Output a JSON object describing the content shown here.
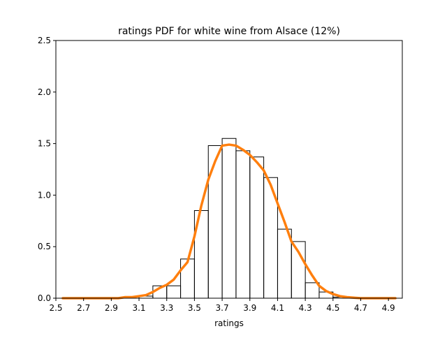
{
  "chart_data": {
    "type": "histogram+line",
    "title": "ratings PDF for white wine from Alsace (12%)",
    "xlabel": "ratings",
    "ylabel": "",
    "xlim": [
      2.5,
      5.0
    ],
    "ylim": [
      0,
      2.5
    ],
    "xticks": [
      "2.5",
      "2.7",
      "2.9",
      "3.1",
      "3.3",
      "3.5",
      "3.7",
      "3.9",
      "4.1",
      "4.3",
      "4.5",
      "4.7",
      "4.9"
    ],
    "yticks": [
      "0.0",
      "0.5",
      "1.0",
      "1.5",
      "2.0",
      "2.5"
    ],
    "grid": false,
    "legend": "none",
    "histogram": {
      "color": "#000000",
      "edges": [
        3.0,
        3.1,
        3.2,
        3.3,
        3.4,
        3.5,
        3.6,
        3.7,
        3.8,
        3.9,
        4.0,
        4.1,
        4.2,
        4.3,
        4.4,
        4.5,
        4.6,
        4.7
      ],
      "values": [
        0,
        0.02,
        0.12,
        0.12,
        0.38,
        0.85,
        1.48,
        1.55,
        1.43,
        1.37,
        1.17,
        0.67,
        0.55,
        0.15,
        0.06,
        0.01,
        0
      ]
    },
    "series": [
      {
        "color": "#ff7f0e",
        "x": [
          2.55,
          2.6,
          2.65,
          2.7,
          2.75,
          2.8,
          2.85,
          2.9,
          2.95,
          3.0,
          3.05,
          3.1,
          3.15,
          3.2,
          3.25,
          3.3,
          3.35,
          3.4,
          3.45,
          3.5,
          3.55,
          3.6,
          3.65,
          3.7,
          3.75,
          3.8,
          3.85,
          3.9,
          3.95,
          4.0,
          4.05,
          4.1,
          4.15,
          4.2,
          4.25,
          4.3,
          4.35,
          4.4,
          4.45,
          4.5,
          4.55,
          4.6,
          4.65,
          4.7,
          4.75,
          4.8,
          4.85,
          4.9,
          4.95
        ],
        "values": [
          0,
          0,
          0,
          0,
          0,
          0,
          0,
          0,
          0,
          0.01,
          0.01,
          0.02,
          0.03,
          0.06,
          0.1,
          0.13,
          0.18,
          0.27,
          0.35,
          0.6,
          0.9,
          1.15,
          1.33,
          1.48,
          1.49,
          1.48,
          1.44,
          1.39,
          1.32,
          1.24,
          1.1,
          0.92,
          0.74,
          0.55,
          0.45,
          0.33,
          0.22,
          0.12,
          0.07,
          0.04,
          0.02,
          0.01,
          0.005,
          0,
          0,
          0,
          0,
          0,
          0
        ]
      }
    ]
  }
}
